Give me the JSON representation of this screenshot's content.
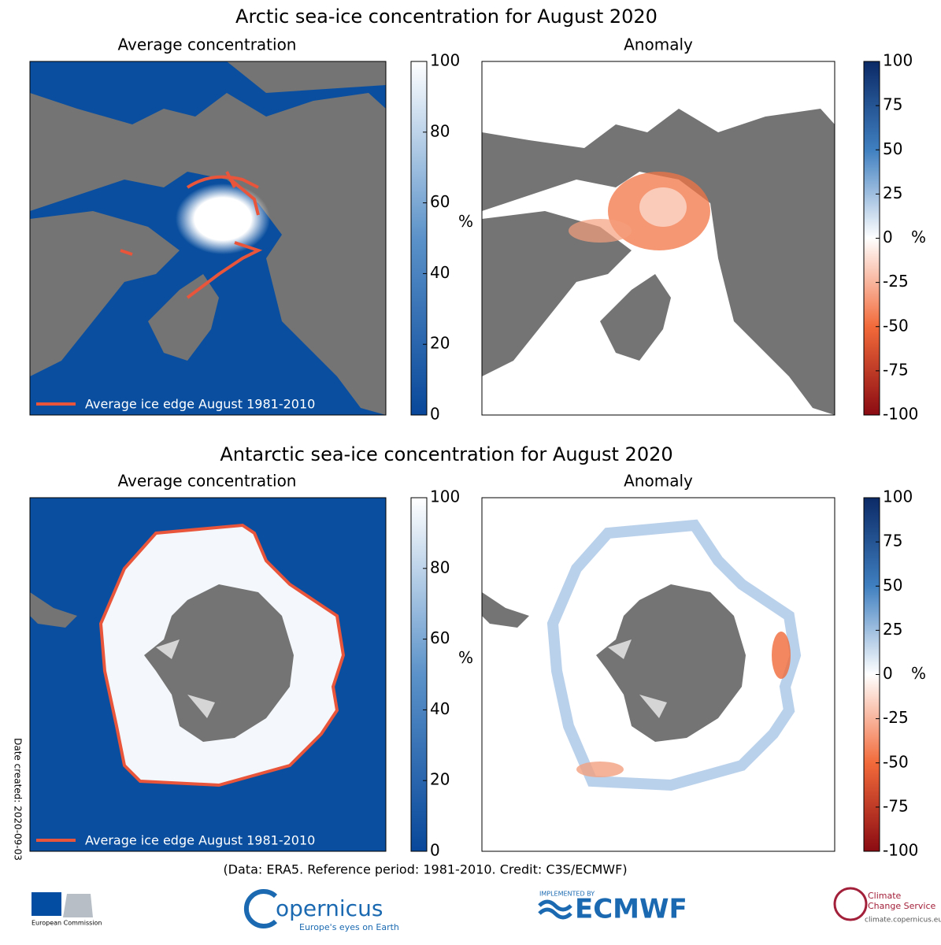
{
  "sections": [
    {
      "title": "Arctic sea-ice concentration for August 2020",
      "panels": [
        {
          "title": "Average concentration",
          "legend": "Average ice edge August 1981-2010",
          "colorbar": {
            "lim": [
              0,
              100
            ],
            "ticks": [
              0,
              20,
              40,
              60,
              80,
              100
            ],
            "unit": "%"
          }
        },
        {
          "title": "Anomaly",
          "colorbar": {
            "lim": [
              -100,
              100
            ],
            "ticks": [
              -100,
              -75,
              -50,
              -25,
              0,
              25,
              50,
              75,
              100
            ],
            "unit": "%"
          }
        }
      ]
    },
    {
      "title": "Antarctic sea-ice concentration for August 2020",
      "panels": [
        {
          "title": "Average concentration",
          "legend": "Average ice edge August 1981-2010",
          "colorbar": {
            "lim": [
              0,
              100
            ],
            "ticks": [
              0,
              20,
              40,
              60,
              80,
              100
            ],
            "unit": "%"
          }
        },
        {
          "title": "Anomaly",
          "colorbar": {
            "lim": [
              -100,
              100
            ],
            "ticks": [
              -100,
              -75,
              -50,
              -25,
              0,
              25,
              50,
              75,
              100
            ],
            "unit": "%"
          }
        }
      ]
    }
  ],
  "footer": {
    "note": "(Data: ERA5.  Reference period: 1981-2010.  Credit: C3S/ECMWF)",
    "date": "Date created: 2020-09-03"
  },
  "logos": {
    "ec": "European Commission",
    "copernicus": "opernicus",
    "copernicus_tagline": "Europe's eyes on Earth",
    "ecmwf_top": "IMPLEMENTED BY",
    "ecmwf": "ECMWF",
    "c3s_1": "Climate",
    "c3s_2": "Change Service",
    "c3s_url": "climate.copernicus.eu"
  }
}
